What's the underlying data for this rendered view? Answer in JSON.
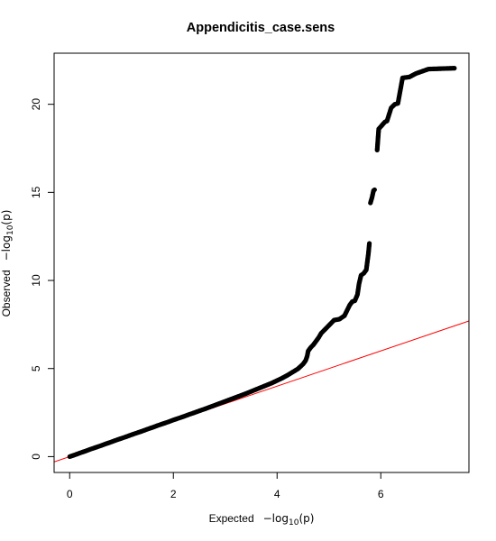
{
  "chart_data": {
    "type": "scatter",
    "title": "Appendicitis_case.sens",
    "xlabel": {
      "prefix": "Expected",
      "neg": "−log",
      "sub": "10",
      "arg": "(p)"
    },
    "ylabel": {
      "prefix": "Observed",
      "neg": "−log",
      "sub": "10",
      "arg": "(p)"
    },
    "xlim": [
      -0.3,
      7.7
    ],
    "ylim": [
      -0.9,
      22.9
    ],
    "xticks": [
      0,
      2,
      4,
      6
    ],
    "yticks": [
      0,
      5,
      10,
      15,
      20
    ],
    "xtick_labels": [
      "0",
      "2",
      "4",
      "6"
    ],
    "ytick_labels": [
      "0",
      "5",
      "10",
      "15",
      "20"
    ],
    "grid": false,
    "reference_line": {
      "slope": 1,
      "intercept": 0,
      "color": "#ff0000"
    },
    "point_color": "#000000",
    "points": [
      [
        0.0,
        0.0
      ],
      [
        0.1,
        0.1
      ],
      [
        0.2,
        0.21
      ],
      [
        0.3,
        0.31
      ],
      [
        0.4,
        0.42
      ],
      [
        0.5,
        0.52
      ],
      [
        0.6,
        0.62
      ],
      [
        0.7,
        0.73
      ],
      [
        0.8,
        0.83
      ],
      [
        0.9,
        0.94
      ],
      [
        1.0,
        1.04
      ],
      [
        1.1,
        1.14
      ],
      [
        1.2,
        1.25
      ],
      [
        1.3,
        1.35
      ],
      [
        1.4,
        1.45
      ],
      [
        1.5,
        1.56
      ],
      [
        1.6,
        1.66
      ],
      [
        1.7,
        1.77
      ],
      [
        1.8,
        1.87
      ],
      [
        1.9,
        1.97
      ],
      [
        2.0,
        2.08
      ],
      [
        2.1,
        2.18
      ],
      [
        2.2,
        2.28
      ],
      [
        2.3,
        2.39
      ],
      [
        2.4,
        2.49
      ],
      [
        2.5,
        2.6
      ],
      [
        2.6,
        2.7
      ],
      [
        2.7,
        2.81
      ],
      [
        2.8,
        2.92
      ],
      [
        2.9,
        3.03
      ],
      [
        3.0,
        3.14
      ],
      [
        3.1,
        3.25
      ],
      [
        3.2,
        3.36
      ],
      [
        3.3,
        3.47
      ],
      [
        3.4,
        3.58
      ],
      [
        3.5,
        3.7
      ],
      [
        3.6,
        3.82
      ],
      [
        3.7,
        3.94
      ],
      [
        3.8,
        4.06
      ],
      [
        3.9,
        4.18
      ],
      [
        4.0,
        4.32
      ],
      [
        4.1,
        4.46
      ],
      [
        4.2,
        4.62
      ],
      [
        4.3,
        4.8
      ],
      [
        4.4,
        4.98
      ],
      [
        4.5,
        5.25
      ],
      [
        4.55,
        5.45
      ],
      [
        4.58,
        5.7
      ],
      [
        4.6,
        6.0
      ],
      [
        4.65,
        6.2
      ],
      [
        4.7,
        6.35
      ],
      [
        4.75,
        6.55
      ],
      [
        4.8,
        6.75
      ],
      [
        4.85,
        7.0
      ],
      [
        4.9,
        7.15
      ],
      [
        4.95,
        7.3
      ],
      [
        5.0,
        7.45
      ],
      [
        5.05,
        7.6
      ],
      [
        5.1,
        7.75
      ],
      [
        5.2,
        7.8
      ],
      [
        5.3,
        8.0
      ],
      [
        5.35,
        8.3
      ],
      [
        5.4,
        8.6
      ],
      [
        5.45,
        8.8
      ],
      [
        5.5,
        8.85
      ],
      [
        5.55,
        9.2
      ],
      [
        5.58,
        9.8
      ],
      [
        5.62,
        10.3
      ],
      [
        5.67,
        10.4
      ],
      [
        5.72,
        10.6
      ],
      [
        5.76,
        11.5
      ],
      [
        5.78,
        12.1
      ],
      [
        5.8,
        14.4
      ],
      [
        5.83,
        14.7
      ],
      [
        5.86,
        15.1
      ],
      [
        5.88,
        15.15
      ],
      [
        5.93,
        17.4
      ],
      [
        5.96,
        18.6
      ],
      [
        6.02,
        18.8
      ],
      [
        6.08,
        19.0
      ],
      [
        6.12,
        19.05
      ],
      [
        6.2,
        19.8
      ],
      [
        6.27,
        20.0
      ],
      [
        6.33,
        20.05
      ],
      [
        6.42,
        21.5
      ],
      [
        6.55,
        21.55
      ],
      [
        6.68,
        21.75
      ],
      [
        6.92,
        22.0
      ],
      [
        7.42,
        22.05
      ]
    ]
  }
}
